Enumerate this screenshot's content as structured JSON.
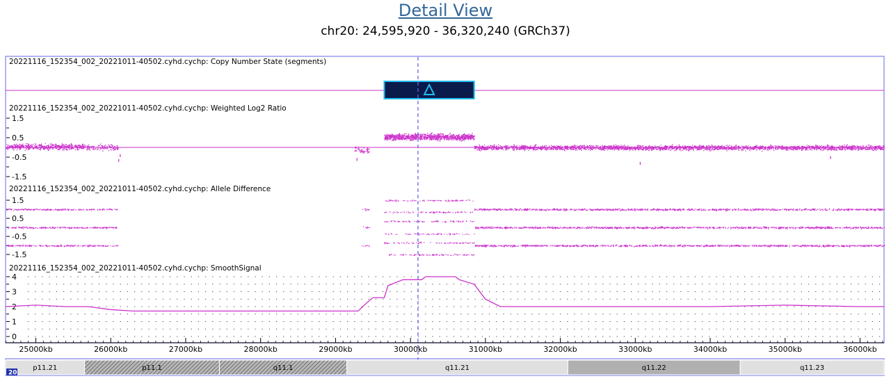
{
  "header": {
    "title": "Detail View",
    "coords": "chr20: 24,595,920 - 36,320,240 (GRCh37)"
  },
  "region": {
    "start_kb": 24596,
    "end_kb": 36320
  },
  "colors": {
    "frame": "#9999ee",
    "signal": "#cc33cc",
    "cursor": "#6666dd",
    "segment_fill": "#0a1a4a",
    "segment_border": "#22bbee",
    "ideogram_light": "#e0e0e0",
    "ideogram_mid": "#b0b0b0",
    "ideogram_stalk": "#888888",
    "chrom_badge": "#2233aa"
  },
  "cursor_kb": 30100,
  "tracks": {
    "copy_number": {
      "label": "20221116_152354_002_20221011-40502.cyhd.cychp: Copy Number State (segments)",
      "segment": {
        "start_kb": 29650,
        "end_kb": 30850,
        "icon": "gain-triangle-icon"
      }
    },
    "log2": {
      "label": "20221116_152354_002_20221011-40502.cyhd.cychp: Weighted Log2 Ratio",
      "ticks": [
        "1.5",
        "0.5",
        "-0.5",
        "-1.5"
      ]
    },
    "allele": {
      "label": "20221116_152354_002_20221011-40502.cyhd.cychp: Allele Difference",
      "ticks": [
        "1.5",
        "0.5",
        "-0.5",
        "-1.5"
      ]
    },
    "smooth": {
      "label": "20221116_152354_002_20221011-40502.cyhd.cychp: SmoothSignal",
      "ticks": [
        "4",
        "3",
        "2",
        "1",
        "0"
      ]
    }
  },
  "axis": {
    "ticks": [
      "25000kb",
      "26000kb",
      "27000kb",
      "28000kb",
      "29000kb",
      "30000kb",
      "31000kb",
      "32000kb",
      "33000kb",
      "34000kb",
      "35000kb",
      "36000kb"
    ],
    "tick_kb": [
      25000,
      26000,
      27000,
      28000,
      29000,
      30000,
      31000,
      32000,
      33000,
      34000,
      35000,
      36000
    ]
  },
  "ideogram": {
    "chromosome": "20",
    "bands": [
      {
        "name": "p11.21",
        "start_kb": 24596,
        "end_kb": 25650,
        "stain": "light"
      },
      {
        "name": "p11.1",
        "start_kb": 25650,
        "end_kb": 27450,
        "stain": "stalk"
      },
      {
        "name": "q11.1",
        "start_kb": 27450,
        "end_kb": 29150,
        "stain": "stalk"
      },
      {
        "name": "q11.21",
        "start_kb": 29150,
        "end_kb": 32100,
        "stain": "light"
      },
      {
        "name": "q11.22",
        "start_kb": 32100,
        "end_kb": 34400,
        "stain": "mid"
      },
      {
        "name": "q11.23",
        "start_kb": 34400,
        "end_kb": 36320,
        "stain": "light"
      }
    ]
  },
  "chart_data": [
    {
      "type": "line",
      "name": "Weighted Log2 Ratio",
      "title": "20221116_152354_002_20221011-40502.cyhd.cychp: Weighted Log2 Ratio",
      "xlabel": "",
      "ylabel": "",
      "ylim": [
        -2,
        2
      ],
      "yticks": [
        1.5,
        0.5,
        -0.5,
        -1.5
      ],
      "x_kb": [
        24600,
        26100,
        29300,
        29650,
        30850,
        36320
      ],
      "y": [
        0.0,
        0.0,
        -0.2,
        0.55,
        0.55,
        0.0
      ]
    },
    {
      "type": "scatter",
      "name": "Allele Difference",
      "title": "20221116_152354_002_20221011-40502.cyhd.cychp: Allele Difference",
      "xlabel": "",
      "ylabel": "",
      "ylim": [
        -2,
        2
      ],
      "yticks": [
        1.5,
        0.5,
        -0.5,
        -1.5
      ],
      "x_kb": [
        24600,
        26100,
        29650,
        30850,
        36320
      ],
      "bands": [
        1.0,
        0.0,
        -1.0
      ]
    },
    {
      "type": "line",
      "name": "SmoothSignal",
      "title": "20221116_152354_002_20221011-40502.cyhd.cychp: SmoothSignal",
      "xlabel": "",
      "ylabel": "",
      "ylim": [
        0,
        4
      ],
      "yticks": [
        4,
        3,
        2,
        1,
        0
      ],
      "x_kb": [
        24596,
        25000,
        25400,
        25700,
        26000,
        26300,
        29000,
        29300,
        29450,
        29500,
        29650,
        29700,
        29900,
        30000,
        30150,
        30200,
        30600,
        30650,
        30850,
        31000,
        31200,
        32000,
        33000,
        34000,
        35000,
        36000,
        36320
      ],
      "y": [
        2.0,
        2.1,
        2.0,
        2.0,
        1.8,
        1.7,
        1.7,
        1.7,
        2.4,
        2.6,
        2.6,
        3.4,
        3.8,
        3.8,
        3.8,
        4.0,
        4.0,
        3.8,
        3.5,
        2.5,
        2.0,
        2.0,
        2.0,
        2.0,
        2.1,
        2.0,
        2.0
      ]
    }
  ]
}
